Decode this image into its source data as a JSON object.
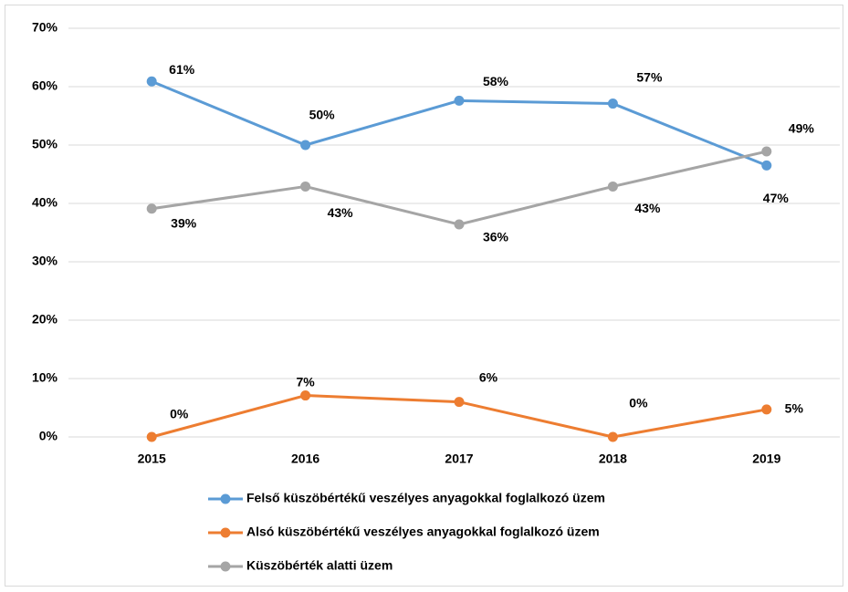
{
  "chart_data": {
    "type": "line",
    "categories": [
      "2015",
      "2016",
      "2017",
      "2018",
      "2019"
    ],
    "series": [
      {
        "name": "Felső küszöbértékű veszélyes anyagokkal foglalkozó üzem",
        "color": "#5b9bd5",
        "values": [
          60.9,
          50,
          57.6,
          57.1,
          46.5
        ],
        "value_labels": [
          "61%",
          "50%",
          "58%",
          "57%",
          "47%"
        ]
      },
      {
        "name": "Alsó küszöbértékű veszélyes anyagokkal foglalkozó üzem",
        "color": "#ed7d31",
        "values": [
          0,
          7.1,
          6,
          0,
          4.7
        ],
        "value_labels": [
          "0%",
          "7%",
          "6%",
          "0%",
          "5%"
        ]
      },
      {
        "name": "Küszöbérték alatti üzem",
        "color": "#a5a5a5",
        "values": [
          39.1,
          42.9,
          36.4,
          42.9,
          48.9
        ],
        "value_labels": [
          "39%",
          "43%",
          "36%",
          "43%",
          "49%"
        ]
      }
    ],
    "ylim": [
      0,
      70
    ],
    "yticks": [
      {
        "value": 0,
        "label": "0%"
      },
      {
        "value": 10,
        "label": "10%"
      },
      {
        "value": 20,
        "label": "20%"
      },
      {
        "value": 30,
        "label": "30%"
      },
      {
        "value": 40,
        "label": "40%"
      },
      {
        "value": 50,
        "label": "50%"
      },
      {
        "value": 60,
        "label": "60%"
      },
      {
        "value": 70,
        "label": "70%"
      }
    ],
    "grid": true,
    "legend": "bottom"
  }
}
